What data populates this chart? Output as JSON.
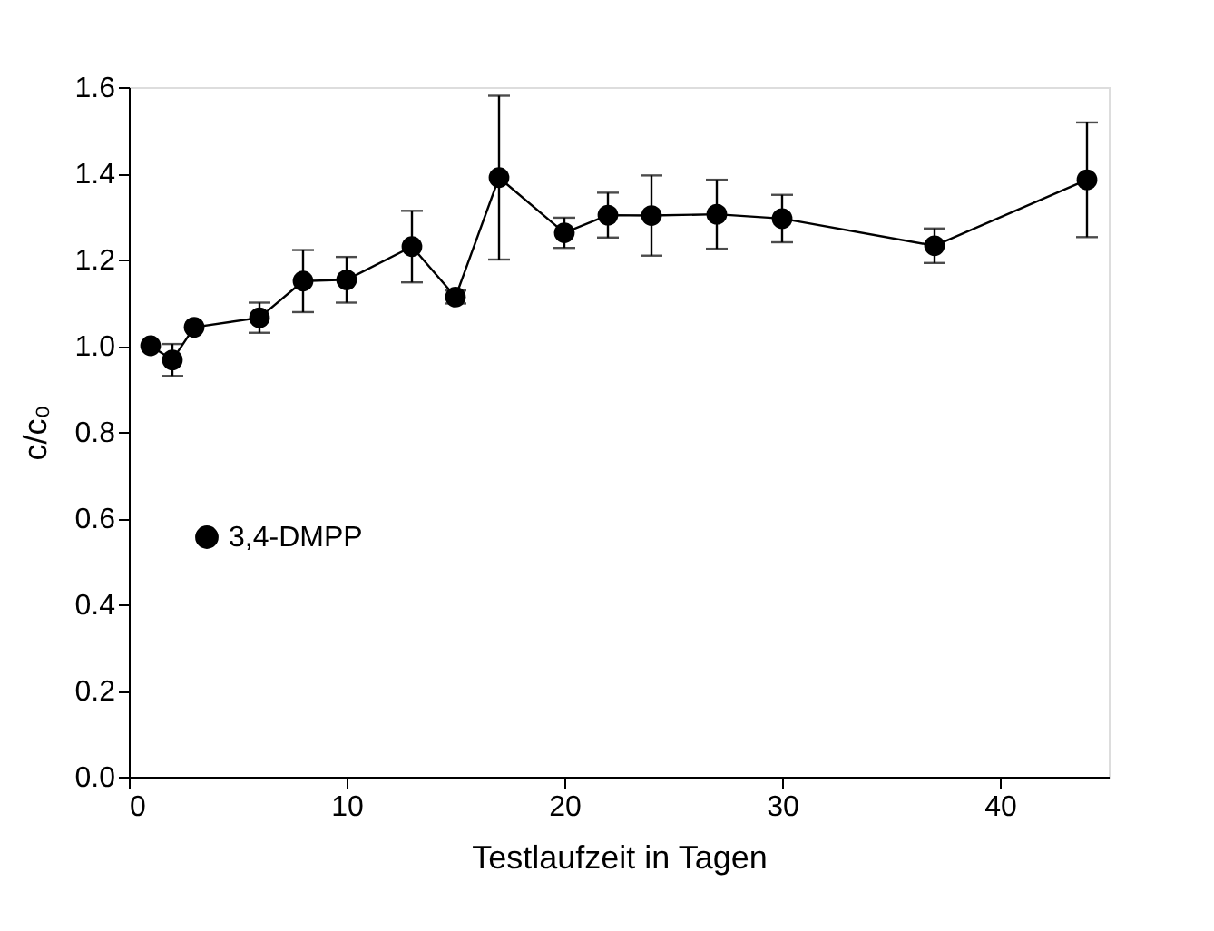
{
  "chart_data": {
    "type": "line",
    "xlabel": "Testlaufzeit in Tagen",
    "ylabel": "c/c₀",
    "x": [
      1,
      2,
      3,
      6,
      8,
      10,
      13,
      15,
      17,
      20,
      22,
      24,
      27,
      30,
      37,
      44
    ],
    "series": [
      {
        "name": "3,4-DMPP",
        "color": "#000000",
        "values": [
          1.0,
          0.967,
          1.043,
          1.065,
          1.15,
          1.153,
          1.23,
          1.113,
          1.39,
          1.262,
          1.303,
          1.302,
          1.305,
          1.295,
          1.232,
          1.385
        ],
        "errors": [
          null,
          0.037,
          null,
          0.035,
          0.072,
          0.053,
          0.083,
          0.015,
          0.19,
          0.035,
          0.052,
          0.093,
          0.08,
          0.055,
          0.04,
          0.133
        ]
      }
    ],
    "xlim": [
      0,
      45
    ],
    "xticks": [
      0,
      10,
      20,
      30,
      40
    ],
    "ylim": [
      0,
      1.6
    ],
    "yticks": [
      {
        "value": 0,
        "label": "0.0"
      },
      0.2,
      0.4,
      0.6,
      0.8,
      {
        "value": 1,
        "label": "1.0"
      },
      1.2,
      1.4,
      1.6
    ],
    "marker": "circle",
    "line_style": "solid",
    "grid": false,
    "legend": "left"
  }
}
